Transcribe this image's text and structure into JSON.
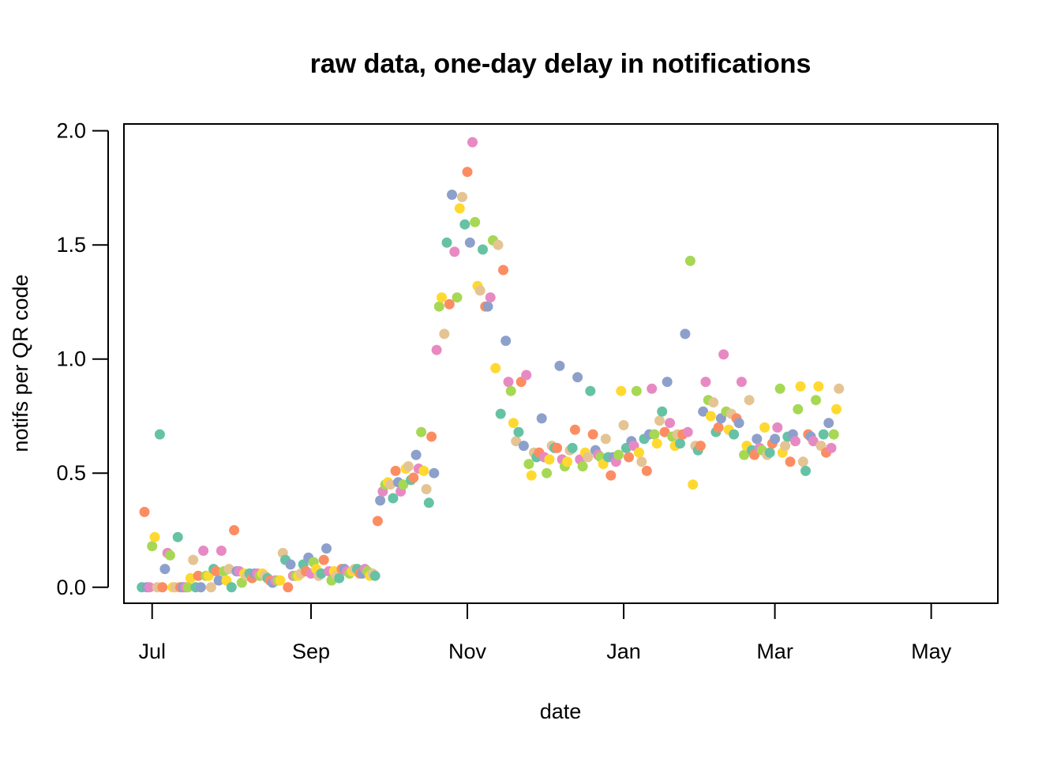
{
  "chart_data": {
    "type": "scatter",
    "title": "raw data, one-day delay in notifications",
    "xlabel": "date",
    "ylabel": "notifs per QR code",
    "x_axis": {
      "kind": "date",
      "range": [
        "2020-06-20",
        "2021-05-27"
      ],
      "ticks": [
        {
          "date": "2020-07-01",
          "label": "Jul"
        },
        {
          "date": "2020-09-01",
          "label": "Sep"
        },
        {
          "date": "2020-11-01",
          "label": "Nov"
        },
        {
          "date": "2021-01-01",
          "label": "Jan"
        },
        {
          "date": "2021-03-01",
          "label": "Mar"
        },
        {
          "date": "2021-05-01",
          "label": "May"
        }
      ]
    },
    "y_axis": {
      "range": [
        -0.07,
        2.03
      ],
      "ticks": [
        {
          "value": 0.0,
          "label": "0.0"
        },
        {
          "value": 0.5,
          "label": "0.5"
        },
        {
          "value": 1.0,
          "label": "1.0"
        },
        {
          "value": 1.5,
          "label": "1.5"
        },
        {
          "value": 2.0,
          "label": "2.0"
        }
      ]
    },
    "grid": false,
    "legend": "none",
    "colors": [
      "#66c2a5",
      "#fc8d62",
      "#8da0cb",
      "#e78ac3",
      "#a6d854",
      "#ffd92f",
      "#e5c494"
    ],
    "start_date": "2020-06-27",
    "y": [
      0,
      0.33,
      0,
      0,
      0.18,
      0.22,
      0,
      0.67,
      0,
      0.08,
      0.15,
      0.14,
      0,
      0,
      0.22,
      0,
      0,
      0,
      0,
      0.04,
      0.12,
      0,
      0.05,
      0,
      0.16,
      0.05,
      0.05,
      0,
      0.08,
      0.07,
      0.03,
      0.16,
      0.07,
      0.03,
      0.08,
      0,
      0.25,
      0.07,
      0.07,
      0.02,
      0.06,
      0.05,
      0.06,
      0.04,
      0.06,
      0.06,
      0.05,
      0.06,
      0.05,
      0.04,
      0.03,
      0.02,
      0.03,
      0.03,
      0.03,
      0.15,
      0.12,
      0,
      0.1,
      0.05,
      0.05,
      0.05,
      0.06,
      0.1,
      0.07,
      0.13,
      0.06,
      0.11,
      0.08,
      0.05,
      0.06,
      0.12,
      0.17,
      0.07,
      0.03,
      0.07,
      0.05,
      0.04,
      0.08,
      0.08,
      0.07,
      0.06,
      0.07,
      0.08,
      0.08,
      0.06,
      0.06,
      0.08,
      0.07,
      0.05,
      0.06,
      0.05,
      0.29,
      0.38,
      0.42,
      0.45,
      0.46,
      0.45,
      0.39,
      0.51,
      0.46,
      0.42,
      0.45,
      0.52,
      0.53,
      0.47,
      0.48,
      0.58,
      0.52,
      0.68,
      0.51,
      0.43,
      0.37,
      0.66,
      0.5,
      1.04,
      1.23,
      1.27,
      1.11,
      1.51,
      1.24,
      1.72,
      1.47,
      1.27,
      1.66,
      1.71,
      1.59,
      1.82,
      1.51,
      1.95,
      1.6,
      1.32,
      1.3,
      1.48,
      1.23,
      1.23,
      1.27,
      1.52,
      0.96,
      1.5,
      0.76,
      1.39,
      1.08,
      0.9,
      0.86,
      0.72,
      0.64,
      0.68,
      0.9,
      0.62,
      0.93,
      0.54,
      0.49,
      0.59,
      0.57,
      0.59,
      0.74,
      0.57,
      0.5,
      0.56,
      0.62,
      0.61,
      0.61,
      0.97,
      0.56,
      0.53,
      0.55,
      0.6,
      0.61,
      0.69,
      0.92,
      0.56,
      0.53,
      0.59,
      0.57,
      0.86,
      0.67,
      0.6,
      0.58,
      0.57,
      0.54,
      0.65,
      0.57,
      0.49,
      0.57,
      0.55,
      0.58,
      0.86,
      0.71,
      0.61,
      0.57,
      0.64,
      0.62,
      0.86,
      0.59,
      0.55,
      0.65,
      0.51,
      0.67,
      0.87,
      0.67,
      0.63,
      0.73,
      0.77,
      0.68,
      0.9,
      0.72,
      0.66,
      0.62,
      0.67,
      0.63,
      0.67,
      1.11,
      0.68,
      1.43,
      0.45,
      0.62,
      0.6,
      0.62,
      0.77,
      0.9,
      0.82,
      0.75,
      0.81,
      0.68,
      0.7,
      0.74,
      1.02,
      0.77,
      0.69,
      0.76,
      0.67,
      0.74,
      0.72,
      0.9,
      0.58,
      0.62,
      0.82,
      0.6,
      0.58,
      0.65,
      0.61,
      0.6,
      0.7,
      0.58,
      0.59,
      0.63,
      0.65,
      0.7,
      0.87,
      0.59,
      0.62,
      0.66,
      0.55,
      0.67,
      0.64,
      0.78,
      0.88,
      0.55,
      0.51,
      0.67,
      0.66,
      0.64,
      0.82,
      0.88,
      0.62,
      0.67,
      0.59,
      0.72,
      0.61,
      0.67,
      0.78,
      0.87
    ]
  }
}
